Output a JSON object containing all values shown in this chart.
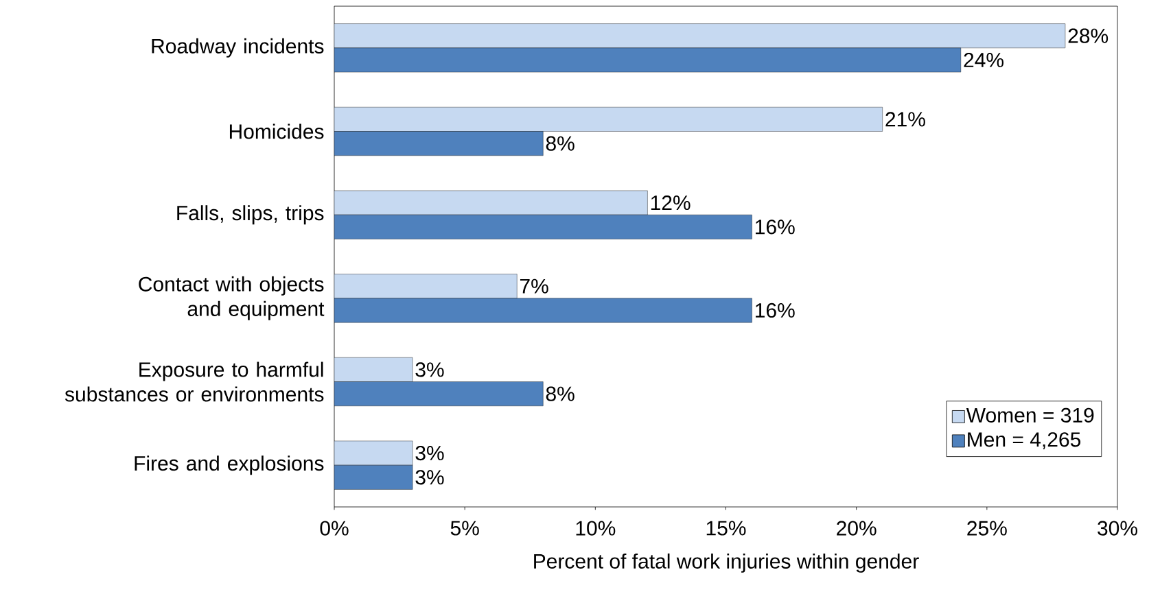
{
  "chart_data": {
    "type": "bar",
    "orientation": "horizontal",
    "xlabel": "Percent of fatal work injuries within gender",
    "categories": [
      "Roadway incidents",
      "Homicides",
      "Falls, slips, trips",
      "Contact with objects and equipment",
      "Exposure to harmful substances or environments",
      "Fires and explosions"
    ],
    "series": [
      {
        "name": "Women = 319",
        "color": "#c6d9f1",
        "values": [
          28,
          21,
          12,
          7,
          3,
          3
        ],
        "value_labels": [
          "28%",
          "21%",
          "12%",
          "7%",
          "3%",
          "3%"
        ]
      },
      {
        "name": "Men = 4,265",
        "color": "#4f81bd",
        "values": [
          24,
          8,
          16,
          16,
          8,
          3
        ],
        "value_labels": [
          "24%",
          "8%",
          "16%",
          "16%",
          "8%",
          "3%"
        ]
      }
    ],
    "xlim": [
      0,
      30
    ],
    "xticks": [
      {
        "value": 0,
        "label": "0%"
      },
      {
        "value": 5,
        "label": "5%"
      },
      {
        "value": 10,
        "label": "10%"
      },
      {
        "value": 15,
        "label": "15%"
      },
      {
        "value": 20,
        "label": "20%"
      },
      {
        "value": 25,
        "label": "25%"
      },
      {
        "value": 30,
        "label": "30%"
      }
    ],
    "legend": "bottom right",
    "grid": false
  }
}
